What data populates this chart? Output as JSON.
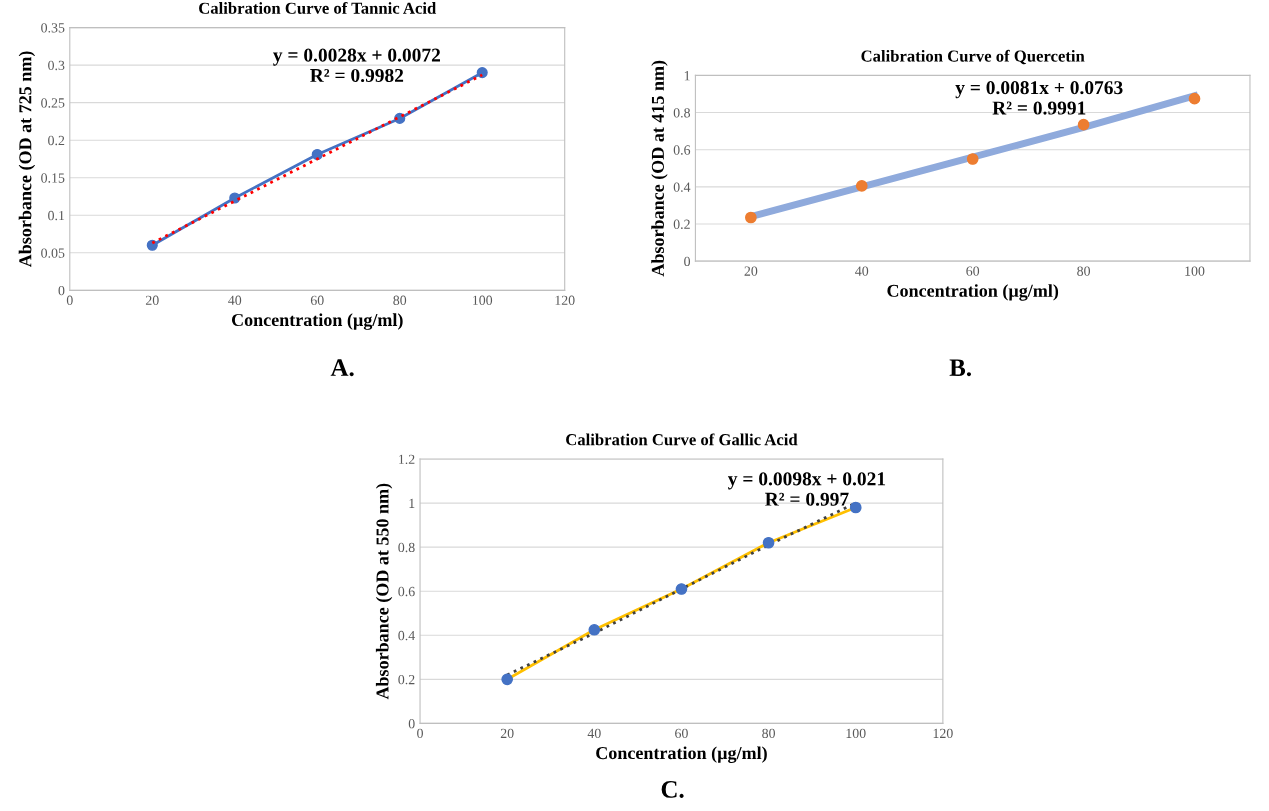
{
  "chart_data": [
    {
      "type": "line",
      "title": "Calibration Curve of Tannic Acid",
      "xlabel": "Concentration (µg/ml)",
      "ylabel": "Absorbance (OD at 725 nm)",
      "x": [
        20,
        40,
        60,
        80,
        100
      ],
      "xlim": [
        0,
        120
      ],
      "xticks": [
        0,
        20,
        40,
        60,
        80,
        100,
        120
      ],
      "ylim": [
        0,
        0.35
      ],
      "yticks": [
        0,
        0.05,
        0.1,
        0.15,
        0.2,
        0.25,
        0.3,
        0.35
      ],
      "grid": "y",
      "marker": "circle",
      "annotations": [
        "y = 0.0028x + 0.0072\nR² = 0.9982",
        "A."
      ],
      "series": [
        {
          "color": "#4472c4",
          "values": [
            0.06,
            0.123,
            0.181,
            0.229,
            0.29
          ]
        },
        {
          "color": "#ff0000",
          "values": [
            0.063,
            0.119,
            0.175,
            0.231,
            0.287
          ],
          "line_style": "dotted",
          "marker": "none"
        }
      ]
    },
    {
      "type": "scatter",
      "title": "Calibration Curve of Quercetin",
      "xlabel": "Concentration (µg/ml)",
      "ylabel": "Absorbance (OD at 415 nm)",
      "x": [
        20,
        40,
        60,
        80,
        100
      ],
      "xlim": [
        10,
        110
      ],
      "xticks": [
        20,
        40,
        60,
        80,
        100
      ],
      "ylim": [
        0,
        1
      ],
      "yticks": [
        0,
        0.2,
        0.4,
        0.6,
        0.8,
        1
      ],
      "grid": "y",
      "marker": "circle",
      "annotations": [
        "y = 0.0081x + 0.0763\nR² = 0.9991",
        "B."
      ],
      "series": [
        {
          "type": "line",
          "color": "#8faadc",
          "values": [
            0.24,
            0.4,
            0.56,
            0.72,
            0.89
          ],
          "line_style": "solid",
          "marker": "none"
        },
        {
          "color": "#ed7d31",
          "values": [
            0.235,
            0.405,
            0.55,
            0.735,
            0.875
          ]
        }
      ]
    },
    {
      "type": "line",
      "title": "Calibration Curve of Gallic Acid",
      "xlabel": "Concentration (µg/ml)",
      "ylabel": "Absorbance (OD at 550 nm)",
      "x": [
        20,
        40,
        60,
        80,
        100
      ],
      "xlim": [
        0,
        120
      ],
      "xticks": [
        0,
        20,
        40,
        60,
        80,
        100,
        120
      ],
      "ylim": [
        0,
        1.2
      ],
      "yticks": [
        0,
        0.2,
        0.4,
        0.6,
        0.8,
        1,
        1.2
      ],
      "grid": "y",
      "marker": "circle",
      "annotations": [
        "y = 0.0098x + 0.021\nR² = 0.997",
        "C."
      ],
      "series": [
        {
          "color": "#ffc000",
          "values": [
            0.2,
            0.425,
            0.61,
            0.82,
            0.98
          ],
          "marker": "none"
        },
        {
          "color": "#404040",
          "values": [
            0.22,
            0.41,
            0.61,
            0.81,
            1.0
          ],
          "line_style": "dotted",
          "marker": "none"
        },
        {
          "type": "scatter",
          "color": "#4472c4",
          "values": [
            0.2,
            0.425,
            0.61,
            0.82,
            0.98
          ]
        }
      ]
    }
  ]
}
